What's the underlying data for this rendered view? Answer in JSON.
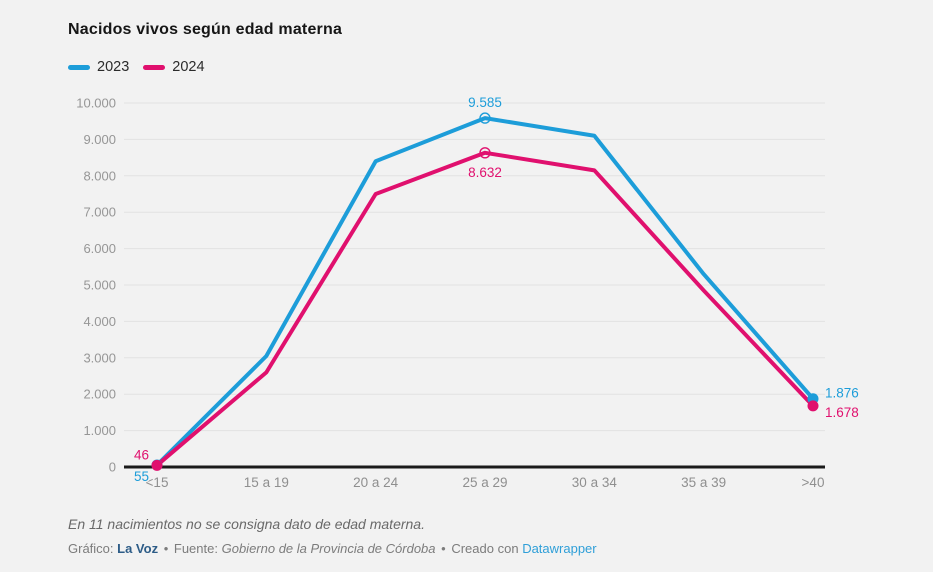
{
  "page": {
    "background": "#f2f2f2"
  },
  "header": {
    "title": "Nacidos vivos según edad materna"
  },
  "legend": {
    "items": [
      {
        "label": "2023",
        "color": "#1d9dd9"
      },
      {
        "label": "2024",
        "color": "#e0106e"
      }
    ]
  },
  "chart_data": {
    "type": "line",
    "title": "Nacidos vivos según edad materna",
    "categories": [
      "<15",
      "15 a 19",
      "20 a 24",
      "25 a 29",
      "30 a 34",
      "35 a 39",
      ">40"
    ],
    "series": [
      {
        "name": "2023",
        "color": "#1d9dd9",
        "values": [
          55,
          3050,
          8400,
          9585,
          9100,
          5300,
          1876
        ],
        "point_labels": {
          "0": "55",
          "3": "9.585",
          "6": "1.876"
        }
      },
      {
        "name": "2024",
        "color": "#e0106e",
        "values": [
          46,
          2600,
          7500,
          8632,
          8150,
          4850,
          1678
        ],
        "point_labels": {
          "0": "46",
          "3": "8.632",
          "6": "1.678"
        }
      }
    ],
    "ylim": [
      0,
      10000
    ],
    "yticks": [
      {
        "value": 0,
        "label": "0"
      },
      {
        "value": 1000,
        "label": "1.000"
      },
      {
        "value": 2000,
        "label": "2.000"
      },
      {
        "value": 3000,
        "label": "3.000"
      },
      {
        "value": 4000,
        "label": "4.000"
      },
      {
        "value": 5000,
        "label": "5.000"
      },
      {
        "value": 6000,
        "label": "6.000"
      },
      {
        "value": 7000,
        "label": "7.000"
      },
      {
        "value": 8000,
        "label": "8.000"
      },
      {
        "value": 9000,
        "label": "9.000"
      },
      {
        "value": 10000,
        "label": "10.000"
      }
    ],
    "grid": true,
    "legend_position": "top-left"
  },
  "footer": {
    "note": "En 11 nacimientos no se consigna dato de edad materna.",
    "credit": {
      "grafico_label": "Gráfico:",
      "grafico_value": "La Voz",
      "fuente_label": "Fuente:",
      "fuente_value": "Gobierno de la Provincia de Córdoba",
      "creado_label": "Creado con",
      "creado_value": "Datawrapper",
      "separator": "•"
    }
  }
}
